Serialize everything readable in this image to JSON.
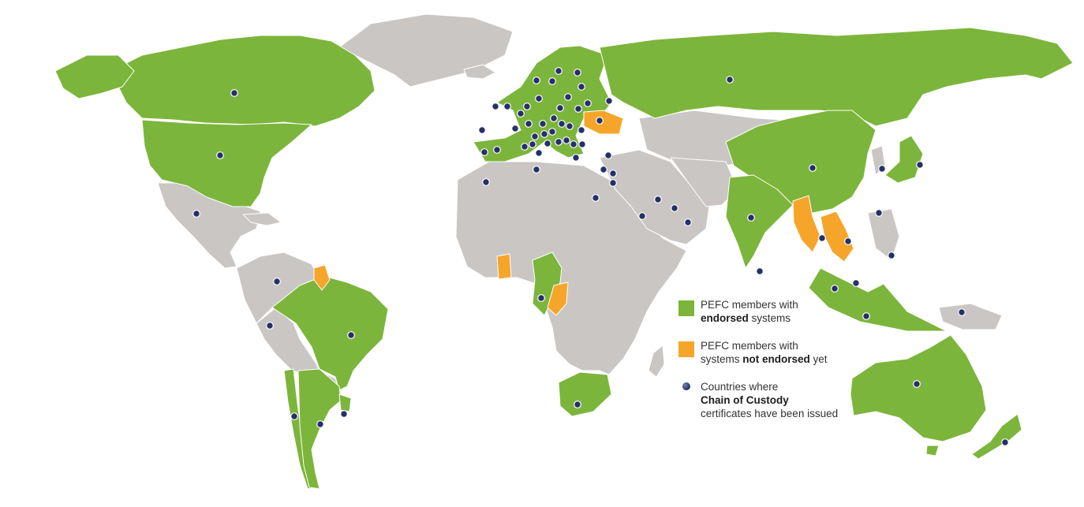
{
  "map": {
    "colors": {
      "endorsed": "#7cb53b",
      "not_endorsed": "#f6a52b",
      "non_member": "#c9c6c3",
      "border": "#ffffff",
      "marker": "#25306b",
      "background": "#ffffff"
    },
    "regions_endorsed": [
      "Canada",
      "United States",
      "Brazil",
      "Chile",
      "Argentina",
      "Uruguay",
      "Western & Northern Europe",
      "Russia",
      "China",
      "India",
      "Japan",
      "Malaysia",
      "Indonesia",
      "Gabon",
      "Cameroon",
      "South Africa",
      "Australia",
      "New Zealand"
    ],
    "regions_not_endorsed": [
      "Ukraine",
      "Guyana",
      "Ghana",
      "Republic of the Congo",
      "Myanmar",
      "Thailand",
      "Vietnam",
      "Laos"
    ]
  },
  "legend": {
    "endorsed": {
      "line1": "PEFC members with",
      "bold": "endorsed",
      "rest": " systems"
    },
    "not_endorsed": {
      "line1": "PEFC members with",
      "pre": "systems ",
      "bold": "not endorsed",
      "rest": " yet"
    },
    "chain_of_custody": {
      "line1": "Countries where",
      "bold": "Chain of Custody",
      "line3": "certificates have been issued"
    }
  }
}
